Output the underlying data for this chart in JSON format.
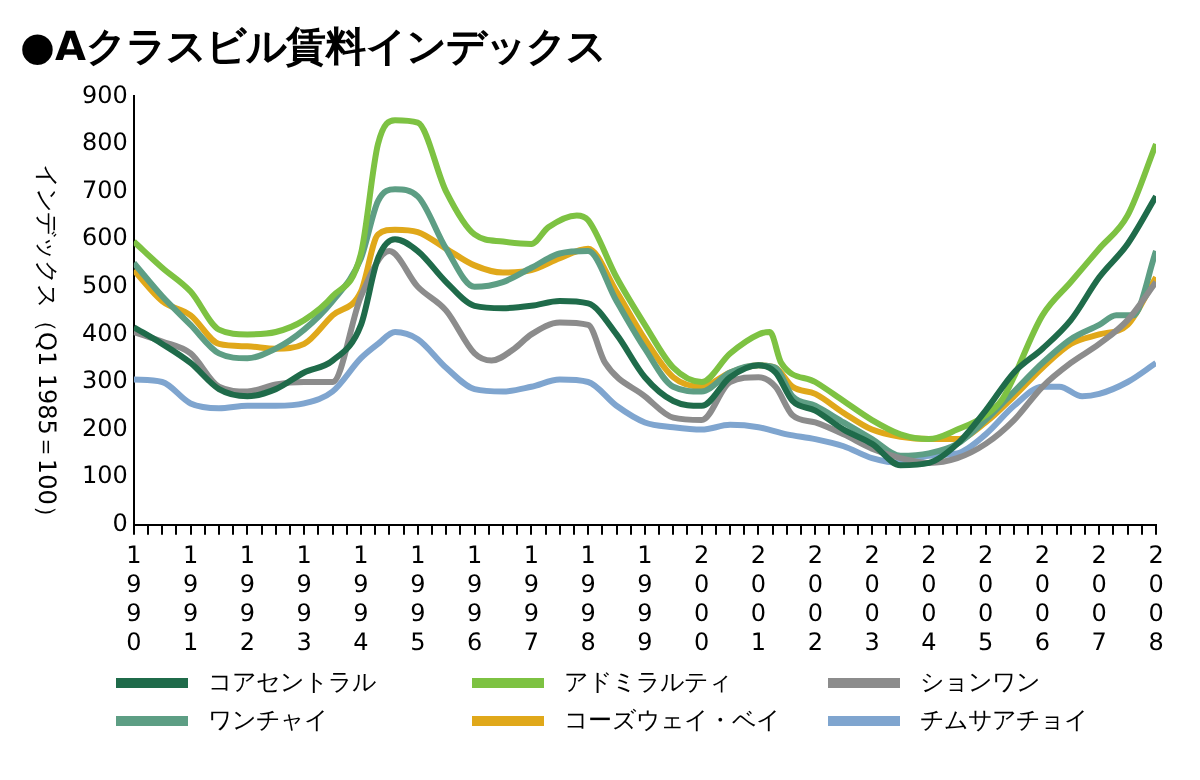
{
  "chart_data": {
    "type": "line",
    "title": "●Aクラスビル賃料インデックス",
    "ylabel": "インデックス（Q1 1985＝100）",
    "legend": "bottom",
    "xlim": [
      1990,
      2008
    ],
    "ylim": [
      0,
      900
    ],
    "yticks": [
      0,
      100,
      200,
      300,
      400,
      500,
      600,
      700,
      800,
      900
    ],
    "xticks": [
      1990,
      {
        "value": 1990.25,
        "label": null
      },
      {
        "value": 1990.5,
        "label": null
      },
      {
        "value": 1990.75,
        "label": null
      },
      1991,
      {
        "value": 1991.25,
        "label": null
      },
      {
        "value": 1991.5,
        "label": null
      },
      {
        "value": 1991.75,
        "label": null
      },
      1992,
      {
        "value": 1992.25,
        "label": null
      },
      {
        "value": 1992.5,
        "label": null
      },
      {
        "value": 1992.75,
        "label": null
      },
      1993,
      {
        "value": 1993.25,
        "label": null
      },
      {
        "value": 1993.5,
        "label": null
      },
      {
        "value": 1993.75,
        "label": null
      },
      1994,
      {
        "value": 1994.25,
        "label": null
      },
      {
        "value": 1994.5,
        "label": null
      },
      {
        "value": 1994.75,
        "label": null
      },
      1995,
      {
        "value": 1995.25,
        "label": null
      },
      {
        "value": 1995.5,
        "label": null
      },
      {
        "value": 1995.75,
        "label": null
      },
      1996,
      {
        "value": 1996.25,
        "label": null
      },
      {
        "value": 1996.5,
        "label": null
      },
      {
        "value": 1996.75,
        "label": null
      },
      1997,
      {
        "value": 1997.25,
        "label": null
      },
      {
        "value": 1997.5,
        "label": null
      },
      {
        "value": 1997.75,
        "label": null
      },
      1998,
      {
        "value": 1998.25,
        "label": null
      },
      {
        "value": 1998.5,
        "label": null
      },
      {
        "value": 1998.75,
        "label": null
      },
      1999,
      {
        "value": 1999.25,
        "label": null
      },
      {
        "value": 1999.5,
        "label": null
      },
      {
        "value": 1999.75,
        "label": null
      },
      2000,
      {
        "value": 2000.25,
        "label": null
      },
      {
        "value": 2000.5,
        "label": null
      },
      {
        "value": 2000.75,
        "label": null
      },
      2001,
      {
        "value": 2001.25,
        "label": null
      },
      {
        "value": 2001.5,
        "label": null
      },
      {
        "value": 2001.75,
        "label": null
      },
      2002,
      {
        "value": 2002.25,
        "label": null
      },
      {
        "value": 2002.5,
        "label": null
      },
      {
        "value": 2002.75,
        "label": null
      },
      2003,
      {
        "value": 2003.25,
        "label": null
      },
      {
        "value": 2003.5,
        "label": null
      },
      {
        "value": 2003.75,
        "label": null
      },
      2004,
      {
        "value": 2004.25,
        "label": null
      },
      {
        "value": 2004.5,
        "label": null
      },
      {
        "value": 2004.75,
        "label": null
      },
      2005,
      {
        "value": 2005.25,
        "label": null
      },
      {
        "value": 2005.5,
        "label": null
      },
      {
        "value": 2005.75,
        "label": null
      },
      2006,
      {
        "value": 2006.25,
        "label": null
      },
      {
        "value": 2006.5,
        "label": null
      },
      {
        "value": 2006.75,
        "label": null
      },
      2007,
      {
        "value": 2007.25,
        "label": null
      },
      {
        "value": 2007.5,
        "label": null
      },
      {
        "value": 2007.75,
        "label": null
      },
      2008
    ],
    "series": [
      {
        "name": "コアセントラル",
        "color": "#1f6b4a",
        "x": [
          1990,
          1990.5,
          1991,
          1991.5,
          1992,
          1992.5,
          1993,
          1993.5,
          1994,
          1994.3,
          1994.6,
          1995,
          1995.5,
          1996,
          1996.5,
          1997,
          1997.5,
          1998,
          1998.5,
          1999,
          1999.5,
          2000,
          2000.5,
          2001,
          2001.3,
          2001.6,
          2002,
          2002.5,
          2003,
          2003.5,
          2004,
          2004.5,
          2005,
          2005.5,
          2006,
          2006.5,
          2007,
          2007.5,
          2008
        ],
        "values": [
          415,
          380,
          340,
          285,
          270,
          285,
          320,
          345,
          420,
          560,
          600,
          575,
          510,
          460,
          455,
          460,
          470,
          465,
          400,
          310,
          260,
          250,
          310,
          335,
          320,
          260,
          240,
          200,
          170,
          125,
          130,
          170,
          240,
          320,
          370,
          430,
          520,
          590,
          690
        ]
      },
      {
        "name": "アドミラルティ",
        "color": "#7dc242",
        "x": [
          1990,
          1990.5,
          1991,
          1991.5,
          1992,
          1992.5,
          1993,
          1993.5,
          1994,
          1994.3,
          1994.6,
          1995,
          1995.5,
          1996,
          1996.5,
          1997,
          1997.3,
          1997.8,
          1998,
          1998.5,
          1999,
          1999.5,
          2000,
          2000.5,
          2001,
          2001.2,
          2001.4,
          2002,
          2002.5,
          2003,
          2003.5,
          2004,
          2004.5,
          2005,
          2005.3,
          2006,
          2006.5,
          2007,
          2007.5,
          2008
        ],
        "values": [
          595,
          540,
          490,
          410,
          400,
          405,
          430,
          480,
          570,
          800,
          850,
          845,
          700,
          610,
          595,
          590,
          625,
          650,
          640,
          520,
          420,
          330,
          300,
          360,
          400,
          405,
          340,
          300,
          260,
          220,
          190,
          180,
          200,
          230,
          265,
          440,
          510,
          580,
          650,
          800
        ]
      },
      {
        "name": "ションワン",
        "color": "#8c8c8c",
        "x": [
          1990,
          1990.5,
          1991,
          1991.5,
          1992,
          1992.5,
          1993,
          1993.5,
          1994,
          1994.5,
          1995,
          1995.5,
          1996,
          1996.3,
          1996.7,
          1997,
          1997.5,
          1998,
          1998.3,
          1999,
          1999.5,
          2000,
          2000.5,
          2001,
          2001.3,
          2001.6,
          2002,
          2002.5,
          2003,
          2003.5,
          2004,
          2004.5,
          2005,
          2005.5,
          2006,
          2006.5,
          2007,
          2007.5,
          2008
        ],
        "values": [
          405,
          385,
          360,
          290,
          280,
          295,
          300,
          300,
          480,
          575,
          500,
          450,
          360,
          345,
          370,
          400,
          425,
          420,
          340,
          270,
          225,
          220,
          300,
          310,
          290,
          230,
          215,
          190,
          160,
          140,
          130,
          140,
          170,
          220,
          290,
          340,
          380,
          430,
          510
        ]
      },
      {
        "name": "ワンチャイ",
        "color": "#5d9e84",
        "x": [
          1990,
          1990.5,
          1991,
          1991.5,
          1992,
          1992.5,
          1993,
          1993.5,
          1994,
          1994.3,
          1994.6,
          1995,
          1995.5,
          1996,
          1996.5,
          1997,
          1997.5,
          1998,
          1998.5,
          1999,
          1999.5,
          2000,
          2000.5,
          2001,
          2001.3,
          2001.6,
          2002,
          2002.5,
          2003,
          2003.5,
          2004,
          2004.5,
          2005,
          2005.5,
          2006,
          2006.5,
          2007,
          2007.3,
          2007.6,
          2008
        ],
        "values": [
          550,
          480,
          420,
          360,
          350,
          370,
          410,
          470,
          560,
          680,
          705,
          690,
          580,
          500,
          510,
          540,
          570,
          575,
          470,
          370,
          290,
          280,
          320,
          335,
          330,
          270,
          250,
          215,
          180,
          145,
          150,
          170,
          220,
          280,
          340,
          390,
          420,
          440,
          440,
          575
        ]
      },
      {
        "name": "コーズウェイ・ベイ",
        "color": "#e0a81a",
        "x": [
          1990,
          1990.5,
          1991,
          1991.5,
          1992,
          1992.5,
          1993,
          1993.5,
          1994,
          1994.3,
          1994.6,
          1995,
          1995.5,
          1996,
          1996.5,
          1997,
          1997.5,
          1998,
          1998.5,
          1999,
          1999.5,
          2000,
          2000.5,
          2001,
          2001.3,
          2001.6,
          2002,
          2002.5,
          2003,
          2003.5,
          2004,
          2004.5,
          2005,
          2005.5,
          2006,
          2006.5,
          2007,
          2007.5,
          2008
        ],
        "values": [
          535,
          470,
          440,
          380,
          375,
          370,
          380,
          440,
          490,
          610,
          620,
          615,
          580,
          545,
          530,
          535,
          560,
          580,
          490,
          390,
          310,
          290,
          320,
          335,
          330,
          290,
          275,
          235,
          200,
          185,
          180,
          180,
          215,
          270,
          330,
          380,
          400,
          420,
          520
        ]
      },
      {
        "name": "チムサアチョイ",
        "color": "#7fa5cf",
        "x": [
          1990,
          1990.5,
          1991,
          1991.5,
          1992,
          1992.5,
          1993,
          1993.5,
          1994,
          1994.3,
          1994.6,
          1995,
          1995.5,
          1996,
          1996.5,
          1997,
          1997.5,
          1998,
          1998.5,
          1999,
          1999.5,
          2000,
          2000.5,
          2001,
          2001.5,
          2002,
          2002.5,
          2003,
          2003.5,
          2004,
          2004.5,
          2005,
          2005.5,
          2006,
          2006.3,
          2006.7,
          2007,
          2007.5,
          2008
        ],
        "values": [
          305,
          300,
          255,
          245,
          250,
          250,
          255,
          280,
          350,
          380,
          405,
          390,
          330,
          285,
          280,
          290,
          305,
          300,
          250,
          215,
          205,
          200,
          210,
          205,
          190,
          180,
          165,
          140,
          130,
          145,
          150,
          190,
          250,
          290,
          290,
          270,
          275,
          300,
          340
        ]
      }
    ]
  }
}
